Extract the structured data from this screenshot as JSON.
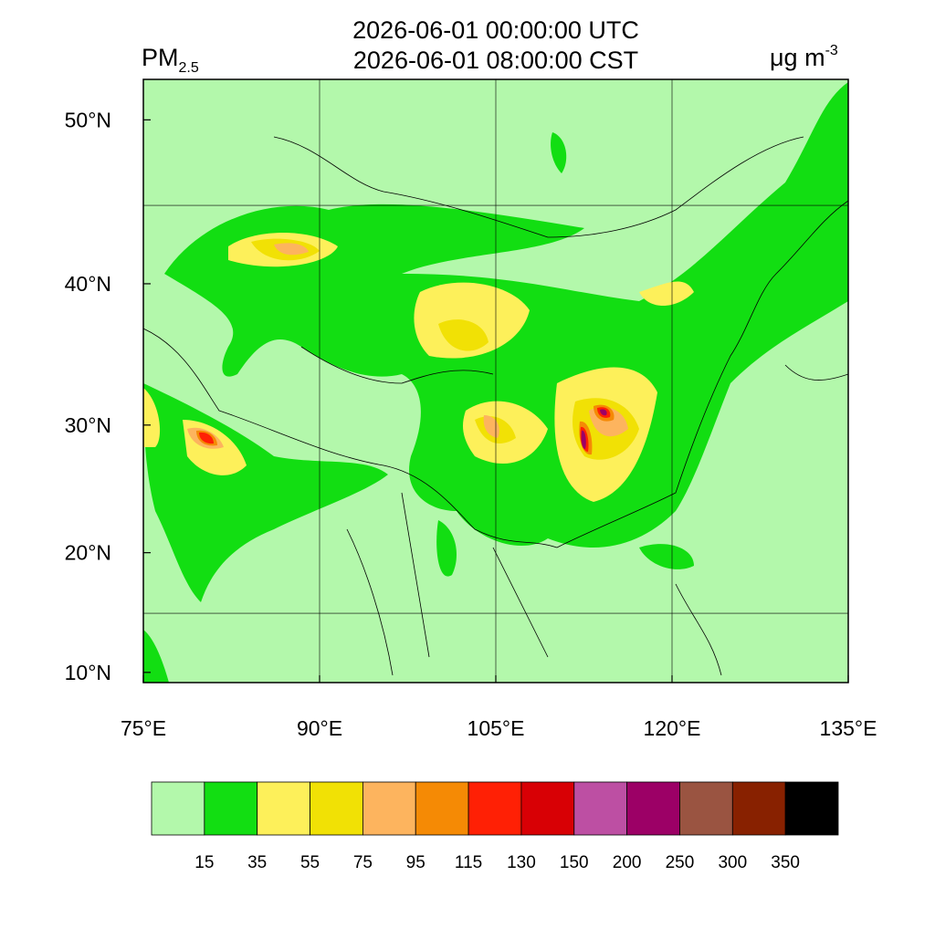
{
  "title": [
    "2026-06-01 00:00:00 UTC",
    "2026-06-01 08:00:00 CST"
  ],
  "left_label": {
    "main": "PM",
    "sub": "2.5"
  },
  "right_label": {
    "main": "μg m",
    "sup": "-3"
  },
  "map": {
    "projection": "mercator",
    "xlim": [
      75,
      135
    ],
    "ylim": [
      9.13,
      52.2
    ],
    "xticks": [
      {
        "value": 75,
        "label": "75°E"
      },
      {
        "value": 90,
        "label": "90°E"
      },
      {
        "value": 105,
        "label": "105°E"
      },
      {
        "value": 120,
        "label": "120°E"
      },
      {
        "value": 135,
        "label": "135°E"
      }
    ],
    "yticks": [
      {
        "value": 10,
        "label": "10°N"
      },
      {
        "value": 20,
        "label": "20°N"
      },
      {
        "value": 30,
        "label": "30°N"
      },
      {
        "value": 40,
        "label": "40°N"
      },
      {
        "value": 50,
        "label": "50°N"
      }
    ],
    "grid_lon": [
      90,
      105,
      120
    ],
    "grid_lat": [
      15,
      45
    ]
  },
  "colorbar": {
    "colors": [
      "#b3f8ab",
      "#12de12",
      "#fdf05a",
      "#f1e105",
      "#fdb45e",
      "#f58a05",
      "#ff2005",
      "#d80005",
      "#bd4fa3",
      "#9c0066",
      "#9a5441",
      "#882100",
      "#000000"
    ],
    "levels": [
      15,
      35,
      55,
      75,
      95,
      115,
      130,
      150,
      200,
      250,
      300,
      350
    ]
  }
}
